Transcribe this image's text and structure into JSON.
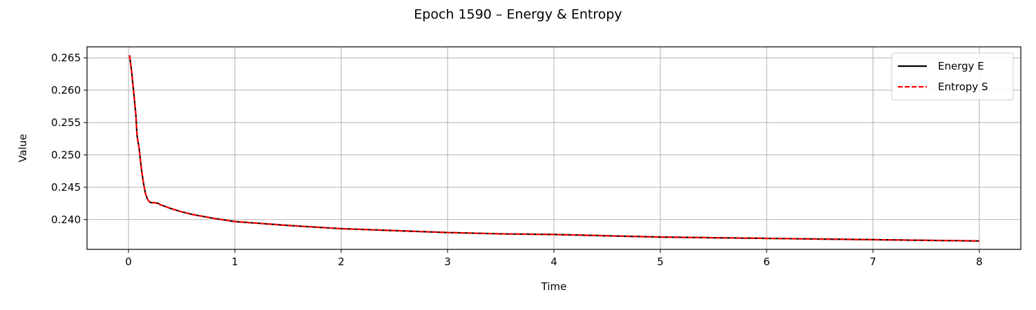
{
  "chart_data": {
    "type": "line",
    "title": "Epoch 1590 – Energy & Entropy",
    "xlabel": "Time",
    "ylabel": "Value",
    "xlim": [
      -0.39,
      8.39
    ],
    "ylim": [
      0.2354,
      0.2667
    ],
    "xticks": [
      0,
      1,
      2,
      3,
      4,
      5,
      6,
      7,
      8
    ],
    "xtick_labels": [
      "0",
      "1",
      "2",
      "3",
      "4",
      "5",
      "6",
      "7",
      "8"
    ],
    "yticks": [
      0.24,
      0.245,
      0.25,
      0.255,
      0.26,
      0.265
    ],
    "ytick_labels": [
      "0.240",
      "0.245",
      "0.250",
      "0.255",
      "0.260",
      "0.265"
    ],
    "grid": true,
    "legend_position": "upper-right",
    "series": [
      {
        "name": "Energy E",
        "color": "#000000",
        "style": "solid",
        "x": [
          0.01,
          0.03,
          0.05,
          0.07,
          0.08,
          0.1,
          0.12,
          0.14,
          0.16,
          0.18,
          0.2,
          0.22,
          0.25,
          0.28,
          0.3,
          0.35,
          0.4,
          0.5,
          0.6,
          0.8,
          1.0,
          1.5,
          2.0,
          2.5,
          3.0,
          3.5,
          4.0,
          4.5,
          5.0,
          5.5,
          6.0,
          6.5,
          7.0,
          7.5,
          8.0
        ],
        "y": [
          0.2654,
          0.2628,
          0.2595,
          0.256,
          0.253,
          0.251,
          0.248,
          0.2457,
          0.244,
          0.2431,
          0.2427,
          0.2426,
          0.2426,
          0.2425,
          0.2423,
          0.242,
          0.2417,
          0.2412,
          0.2408,
          0.2402,
          0.2397,
          0.2391,
          0.2386,
          0.2383,
          0.238,
          0.2378,
          0.2377,
          0.2375,
          0.2373,
          0.2372,
          0.2371,
          0.237,
          0.2369,
          0.2368,
          0.2367
        ]
      },
      {
        "name": "Entropy S",
        "color": "#ff0000",
        "style": "dashed",
        "x": [
          0.01,
          0.03,
          0.05,
          0.07,
          0.08,
          0.1,
          0.12,
          0.14,
          0.16,
          0.18,
          0.2,
          0.22,
          0.25,
          0.28,
          0.3,
          0.35,
          0.4,
          0.5,
          0.6,
          0.8,
          1.0,
          1.5,
          2.0,
          2.5,
          3.0,
          3.5,
          4.0,
          4.5,
          5.0,
          5.5,
          6.0,
          6.5,
          7.0,
          7.5,
          8.0
        ],
        "y": [
          0.2654,
          0.2628,
          0.2595,
          0.256,
          0.253,
          0.251,
          0.248,
          0.2457,
          0.244,
          0.2431,
          0.2427,
          0.2426,
          0.2426,
          0.2425,
          0.2423,
          0.242,
          0.2417,
          0.2412,
          0.2408,
          0.2402,
          0.2397,
          0.2391,
          0.2386,
          0.2383,
          0.238,
          0.2378,
          0.2377,
          0.2375,
          0.2373,
          0.2372,
          0.2371,
          0.237,
          0.2369,
          0.2368,
          0.2367
        ]
      }
    ]
  }
}
